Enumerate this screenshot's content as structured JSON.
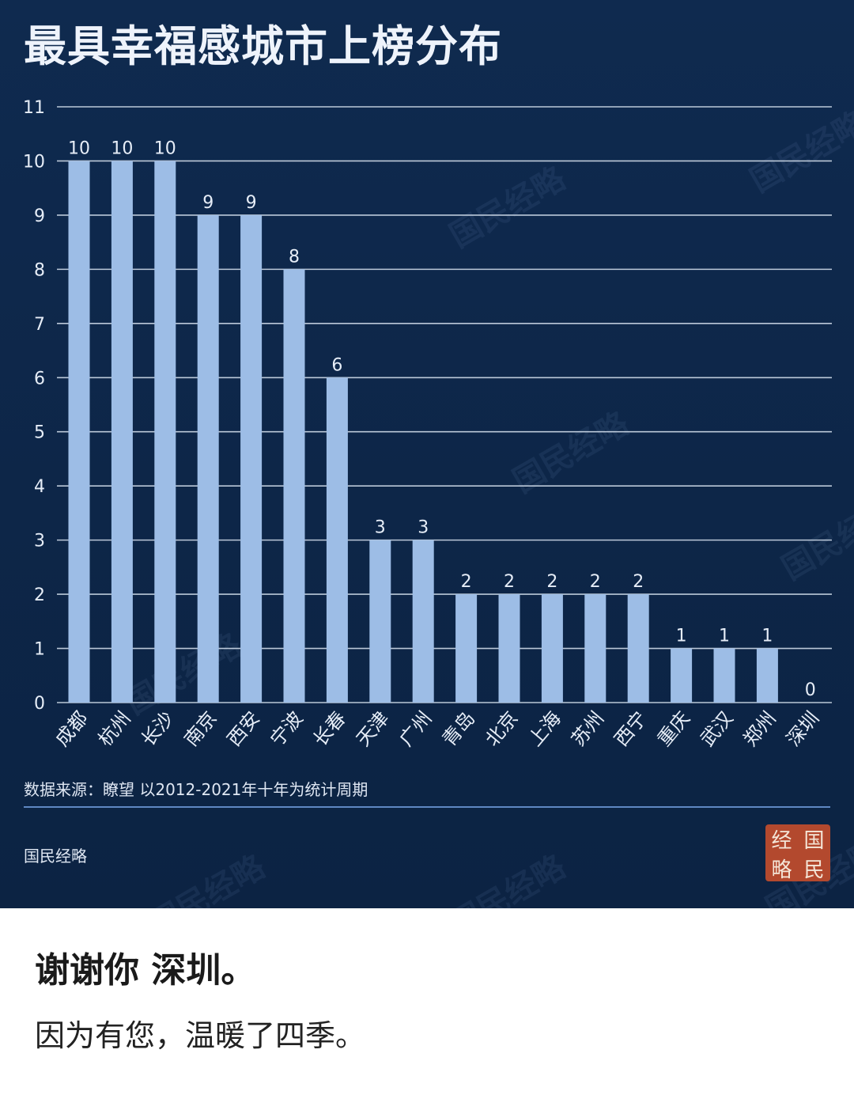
{
  "title": "最具幸福感城市上榜分布",
  "source_note": "数据来源：瞭望 以2012-2021年十年为统计周期",
  "publisher": "国民经略",
  "seal_chars": [
    "经",
    "国",
    "略",
    "民"
  ],
  "watermark_text": "国民经略",
  "caption": {
    "main": "谢谢你 深圳。",
    "sub": "因为有您，温暖了四季。"
  },
  "colors": {
    "background": "#0f2a4f",
    "bar": "#9dbde6",
    "grid": "#dbe5f2",
    "text": "#e6edf7",
    "seal": "#b3492e"
  },
  "chart_data": {
    "type": "bar",
    "title": "最具幸福感城市上榜分布",
    "categories": [
      "成都",
      "杭州",
      "长沙",
      "南京",
      "西安",
      "宁波",
      "长春",
      "天津",
      "广州",
      "青岛",
      "北京",
      "上海",
      "苏州",
      "西宁",
      "重庆",
      "武汉",
      "郑州",
      "深圳"
    ],
    "values": [
      10,
      10,
      10,
      9,
      9,
      8,
      6,
      3,
      3,
      2,
      2,
      2,
      2,
      2,
      1,
      1,
      1,
      0
    ],
    "ylim": [
      0,
      11
    ],
    "yticks": [
      0,
      1,
      2,
      3,
      4,
      5,
      6,
      7,
      8,
      9,
      10,
      11
    ],
    "grid": true,
    "data_labels": true,
    "xlabel": "",
    "ylabel": ""
  }
}
